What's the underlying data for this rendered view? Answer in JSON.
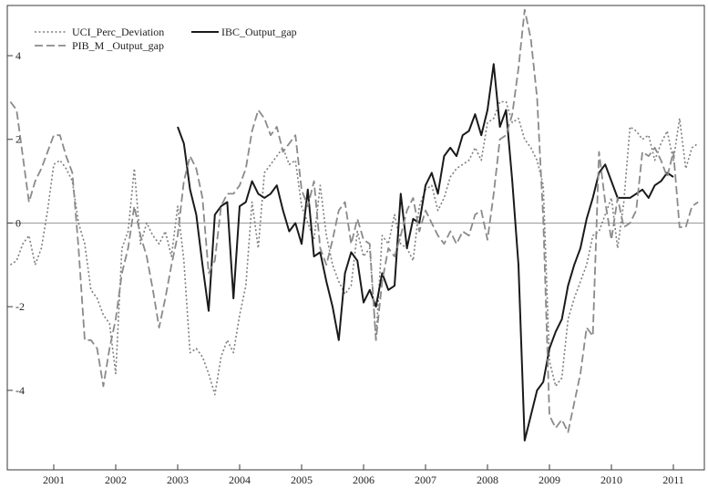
{
  "chart_data": {
    "type": "line",
    "title": "",
    "xlabel": "",
    "ylabel": "",
    "xlim": [
      2000.25,
      2011.5
    ],
    "ylim": [
      -5.9,
      5.2
    ],
    "x_ticks": [
      2001,
      2002,
      2003,
      2004,
      2005,
      2006,
      2007,
      2008,
      2009,
      2010,
      2011
    ],
    "y_ticks": [
      4,
      2,
      0,
      -2,
      -4
    ],
    "zero_line": true,
    "grid": false,
    "legend_position": "top-left",
    "legend": [
      "UCI_Perc_Deviation",
      "IBC_Output_gap",
      "PIB_M _Output_gap"
    ],
    "series": [
      {
        "name": "UCI_Perc_Deviation",
        "style": "dotted",
        "color": "#7f7f7f",
        "points": [
          [
            2000.3,
            -1.0
          ],
          [
            2000.4,
            -0.9
          ],
          [
            2000.5,
            -0.5
          ],
          [
            2000.6,
            -0.3
          ],
          [
            2000.7,
            -1.0
          ],
          [
            2000.8,
            -0.6
          ],
          [
            2000.9,
            0.3
          ],
          [
            2001.0,
            1.4
          ],
          [
            2001.1,
            1.5
          ],
          [
            2001.2,
            1.3
          ],
          [
            2001.3,
            1.0
          ],
          [
            2001.4,
            0.0
          ],
          [
            2001.5,
            -0.5
          ],
          [
            2001.6,
            -1.6
          ],
          [
            2001.7,
            -1.8
          ],
          [
            2001.8,
            -2.2
          ],
          [
            2001.9,
            -2.4
          ],
          [
            2002.0,
            -3.6
          ],
          [
            2002.1,
            -0.6
          ],
          [
            2002.2,
            -0.2
          ],
          [
            2002.3,
            1.3
          ],
          [
            2002.4,
            -0.5
          ],
          [
            2002.5,
            0.0
          ],
          [
            2002.6,
            -0.3
          ],
          [
            2002.7,
            -0.5
          ],
          [
            2002.8,
            -0.2
          ],
          [
            2002.9,
            -0.8
          ],
          [
            2003.0,
            0.4
          ],
          [
            2003.1,
            -0.9
          ],
          [
            2003.2,
            -3.1
          ],
          [
            2003.3,
            -3.0
          ],
          [
            2003.4,
            -3.2
          ],
          [
            2003.5,
            -3.6
          ],
          [
            2003.6,
            -4.1
          ],
          [
            2003.7,
            -3.2
          ],
          [
            2003.8,
            -2.8
          ],
          [
            2003.9,
            -3.1
          ],
          [
            2004.0,
            -2.2
          ],
          [
            2004.1,
            -1.5
          ],
          [
            2004.2,
            0.5
          ],
          [
            2004.3,
            -0.6
          ],
          [
            2004.4,
            1.2
          ],
          [
            2004.5,
            1.4
          ],
          [
            2004.6,
            1.6
          ],
          [
            2004.7,
            1.8
          ],
          [
            2004.8,
            1.4
          ],
          [
            2004.9,
            1.5
          ],
          [
            2005.0,
            0.4
          ],
          [
            2005.1,
            0.0
          ],
          [
            2005.2,
            -0.4
          ],
          [
            2005.3,
            0.9
          ],
          [
            2005.4,
            -0.3
          ],
          [
            2005.5,
            -1.0
          ],
          [
            2005.6,
            -1.4
          ],
          [
            2005.7,
            -1.7
          ],
          [
            2005.8,
            -1.5
          ],
          [
            2005.9,
            -0.2
          ],
          [
            2006.0,
            -0.8
          ],
          [
            2006.1,
            -0.6
          ],
          [
            2006.2,
            -2.8
          ],
          [
            2006.3,
            -0.3
          ],
          [
            2006.4,
            -0.5
          ],
          [
            2006.5,
            0.2
          ],
          [
            2006.6,
            -0.5
          ],
          [
            2006.7,
            -0.6
          ],
          [
            2006.8,
            -0.9
          ],
          [
            2006.9,
            0.4
          ],
          [
            2007.0,
            0.8
          ],
          [
            2007.1,
            0.9
          ],
          [
            2007.2,
            0.3
          ],
          [
            2007.3,
            0.6
          ],
          [
            2007.4,
            1.1
          ],
          [
            2007.5,
            1.3
          ],
          [
            2007.6,
            1.4
          ],
          [
            2007.7,
            1.5
          ],
          [
            2007.8,
            1.8
          ],
          [
            2007.9,
            1.5
          ],
          [
            2008.0,
            2.4
          ],
          [
            2008.1,
            2.5
          ],
          [
            2008.2,
            2.9
          ],
          [
            2008.3,
            2.9
          ],
          [
            2008.4,
            2.4
          ],
          [
            2008.5,
            2.5
          ],
          [
            2008.6,
            2.0
          ],
          [
            2008.7,
            1.8
          ],
          [
            2008.8,
            1.5
          ],
          [
            2008.9,
            0.9
          ],
          [
            2009.0,
            -3.3
          ],
          [
            2009.1,
            -3.9
          ],
          [
            2009.2,
            -3.7
          ],
          [
            2009.3,
            -2.3
          ],
          [
            2009.4,
            -1.8
          ],
          [
            2009.5,
            -1.4
          ],
          [
            2009.6,
            -1.0
          ],
          [
            2009.7,
            -0.3
          ],
          [
            2009.8,
            -0.2
          ],
          [
            2009.9,
            0.2
          ],
          [
            2010.0,
            0.6
          ],
          [
            2010.1,
            -0.6
          ],
          [
            2010.2,
            0.5
          ],
          [
            2010.3,
            2.3
          ],
          [
            2010.4,
            2.2
          ],
          [
            2010.5,
            2.0
          ],
          [
            2010.6,
            2.1
          ],
          [
            2010.7,
            1.5
          ],
          [
            2010.8,
            1.9
          ],
          [
            2010.9,
            2.2
          ],
          [
            2011.0,
            1.5
          ],
          [
            2011.1,
            2.5
          ],
          [
            2011.2,
            1.3
          ],
          [
            2011.3,
            1.8
          ],
          [
            2011.4,
            1.9
          ]
        ]
      },
      {
        "name": "IBC_Output_gap",
        "style": "solid",
        "color": "#1a1a1a",
        "points": [
          [
            2003.0,
            2.3
          ],
          [
            2003.1,
            1.9
          ],
          [
            2003.2,
            0.8
          ],
          [
            2003.3,
            0.2
          ],
          [
            2003.4,
            -1.0
          ],
          [
            2003.5,
            -2.1
          ],
          [
            2003.6,
            0.2
          ],
          [
            2003.7,
            0.4
          ],
          [
            2003.8,
            0.5
          ],
          [
            2003.9,
            -1.8
          ],
          [
            2004.0,
            0.4
          ],
          [
            2004.1,
            0.5
          ],
          [
            2004.2,
            1.0
          ],
          [
            2004.3,
            0.7
          ],
          [
            2004.4,
            0.6
          ],
          [
            2004.5,
            0.7
          ],
          [
            2004.6,
            0.9
          ],
          [
            2004.7,
            0.3
          ],
          [
            2004.8,
            -0.2
          ],
          [
            2004.9,
            0.0
          ],
          [
            2005.0,
            -0.5
          ],
          [
            2005.1,
            0.8
          ],
          [
            2005.2,
            -0.8
          ],
          [
            2005.3,
            -0.7
          ],
          [
            2005.4,
            -1.4
          ],
          [
            2005.5,
            -2.0
          ],
          [
            2005.6,
            -2.8
          ],
          [
            2005.7,
            -1.2
          ],
          [
            2005.8,
            -0.7
          ],
          [
            2005.9,
            -0.9
          ],
          [
            2006.0,
            -1.9
          ],
          [
            2006.1,
            -1.6
          ],
          [
            2006.2,
            -2.0
          ],
          [
            2006.3,
            -1.2
          ],
          [
            2006.4,
            -1.6
          ],
          [
            2006.5,
            -1.5
          ],
          [
            2006.6,
            0.7
          ],
          [
            2006.7,
            -0.6
          ],
          [
            2006.8,
            0.1
          ],
          [
            2006.9,
            0.0
          ],
          [
            2007.0,
            0.9
          ],
          [
            2007.1,
            1.2
          ],
          [
            2007.2,
            0.7
          ],
          [
            2007.3,
            1.6
          ],
          [
            2007.4,
            1.8
          ],
          [
            2007.5,
            1.6
          ],
          [
            2007.6,
            2.1
          ],
          [
            2007.7,
            2.2
          ],
          [
            2007.8,
            2.6
          ],
          [
            2007.9,
            2.1
          ],
          [
            2008.0,
            2.7
          ],
          [
            2008.1,
            3.8
          ],
          [
            2008.2,
            2.3
          ],
          [
            2008.3,
            2.7
          ],
          [
            2008.4,
            1.0
          ],
          [
            2008.5,
            -1.0
          ],
          [
            2008.6,
            -5.2
          ],
          [
            2008.7,
            -4.6
          ],
          [
            2008.8,
            -4.0
          ],
          [
            2008.9,
            -3.8
          ],
          [
            2009.0,
            -3.0
          ],
          [
            2009.1,
            -2.6
          ],
          [
            2009.2,
            -2.3
          ],
          [
            2009.3,
            -1.5
          ],
          [
            2009.4,
            -1.0
          ],
          [
            2009.5,
            -0.6
          ],
          [
            2009.6,
            0.1
          ],
          [
            2009.7,
            0.6
          ],
          [
            2009.8,
            1.2
          ],
          [
            2009.9,
            1.4
          ],
          [
            2010.0,
            1.0
          ],
          [
            2010.1,
            0.6
          ],
          [
            2010.2,
            0.6
          ],
          [
            2010.3,
            0.6
          ],
          [
            2010.4,
            0.7
          ],
          [
            2010.5,
            0.8
          ],
          [
            2010.6,
            0.6
          ],
          [
            2010.7,
            0.9
          ],
          [
            2010.8,
            1.0
          ],
          [
            2010.9,
            1.2
          ],
          [
            2011.0,
            1.1
          ]
        ]
      },
      {
        "name": "PIB_M _Output_gap",
        "style": "dashed",
        "color": "#8a8a8a",
        "points": [
          [
            2000.3,
            2.9
          ],
          [
            2000.4,
            2.7
          ],
          [
            2000.5,
            1.6
          ],
          [
            2000.6,
            0.5
          ],
          [
            2000.7,
            1.0
          ],
          [
            2000.8,
            1.3
          ],
          [
            2000.9,
            1.7
          ],
          [
            2001.0,
            2.1
          ],
          [
            2001.1,
            2.1
          ],
          [
            2001.2,
            1.6
          ],
          [
            2001.3,
            1.2
          ],
          [
            2001.4,
            -0.6
          ],
          [
            2001.5,
            -2.8
          ],
          [
            2001.6,
            -2.8
          ],
          [
            2001.7,
            -3.0
          ],
          [
            2001.8,
            -3.9
          ],
          [
            2001.9,
            -3.0
          ],
          [
            2002.0,
            -2.3
          ],
          [
            2002.1,
            -1.2
          ],
          [
            2002.2,
            -0.6
          ],
          [
            2002.3,
            0.4
          ],
          [
            2002.4,
            -0.3
          ],
          [
            2002.5,
            -0.8
          ],
          [
            2002.6,
            -1.6
          ],
          [
            2002.7,
            -2.5
          ],
          [
            2002.8,
            -1.8
          ],
          [
            2002.9,
            -1.0
          ],
          [
            2003.0,
            -0.3
          ],
          [
            2003.1,
            1.0
          ],
          [
            2003.2,
            1.6
          ],
          [
            2003.3,
            1.3
          ],
          [
            2003.4,
            0.6
          ],
          [
            2003.5,
            -1.2
          ],
          [
            2003.6,
            -0.9
          ],
          [
            2003.7,
            0.4
          ],
          [
            2003.8,
            0.7
          ],
          [
            2003.9,
            0.7
          ],
          [
            2004.0,
            0.9
          ],
          [
            2004.1,
            1.3
          ],
          [
            2004.2,
            2.2
          ],
          [
            2004.3,
            2.7
          ],
          [
            2004.4,
            2.5
          ],
          [
            2004.5,
            2.1
          ],
          [
            2004.6,
            2.3
          ],
          [
            2004.7,
            1.7
          ],
          [
            2004.8,
            1.9
          ],
          [
            2004.9,
            2.1
          ],
          [
            2005.0,
            0.8
          ],
          [
            2005.1,
            0.4
          ],
          [
            2005.2,
            1.0
          ],
          [
            2005.3,
            -0.6
          ],
          [
            2005.4,
            -1.0
          ],
          [
            2005.5,
            -0.4
          ],
          [
            2005.6,
            0.3
          ],
          [
            2005.7,
            0.5
          ],
          [
            2005.8,
            -0.5
          ],
          [
            2005.9,
            0.1
          ],
          [
            2006.0,
            -0.4
          ],
          [
            2006.1,
            -0.5
          ],
          [
            2006.2,
            -2.8
          ],
          [
            2006.3,
            -1.4
          ],
          [
            2006.4,
            -0.6
          ],
          [
            2006.5,
            -0.8
          ],
          [
            2006.6,
            -0.3
          ],
          [
            2006.7,
            0.3
          ],
          [
            2006.8,
            0.6
          ],
          [
            2006.9,
            -0.2
          ],
          [
            2007.0,
            0.3
          ],
          [
            2007.1,
            0.0
          ],
          [
            2007.2,
            -0.3
          ],
          [
            2007.3,
            -0.5
          ],
          [
            2007.4,
            -0.2
          ],
          [
            2007.5,
            -0.5
          ],
          [
            2007.6,
            -0.2
          ],
          [
            2007.7,
            -0.3
          ],
          [
            2007.8,
            0.2
          ],
          [
            2007.9,
            0.3
          ],
          [
            2008.0,
            -0.4
          ],
          [
            2008.1,
            0.7
          ],
          [
            2008.2,
            2.0
          ],
          [
            2008.3,
            2.1
          ],
          [
            2008.4,
            2.6
          ],
          [
            2008.5,
            3.7
          ],
          [
            2008.6,
            5.1
          ],
          [
            2008.7,
            4.4
          ],
          [
            2008.8,
            3.0
          ],
          [
            2008.9,
            0.1
          ],
          [
            2009.0,
            -4.6
          ],
          [
            2009.1,
            -4.9
          ],
          [
            2009.2,
            -4.7
          ],
          [
            2009.3,
            -5.0
          ],
          [
            2009.4,
            -4.3
          ],
          [
            2009.5,
            -3.6
          ],
          [
            2009.6,
            -2.5
          ],
          [
            2009.7,
            -2.7
          ],
          [
            2009.8,
            1.7
          ],
          [
            2009.9,
            0.5
          ],
          [
            2010.0,
            -0.4
          ],
          [
            2010.1,
            0.6
          ],
          [
            2010.2,
            -0.1
          ],
          [
            2010.3,
            0.0
          ],
          [
            2010.4,
            0.3
          ],
          [
            2010.5,
            1.7
          ],
          [
            2010.6,
            1.6
          ],
          [
            2010.7,
            1.8
          ],
          [
            2010.8,
            1.5
          ],
          [
            2010.9,
            1.1
          ],
          [
            2011.0,
            1.7
          ],
          [
            2011.1,
            -0.1
          ],
          [
            2011.2,
            -0.1
          ],
          [
            2011.3,
            0.4
          ],
          [
            2011.4,
            0.5
          ]
        ]
      }
    ]
  }
}
